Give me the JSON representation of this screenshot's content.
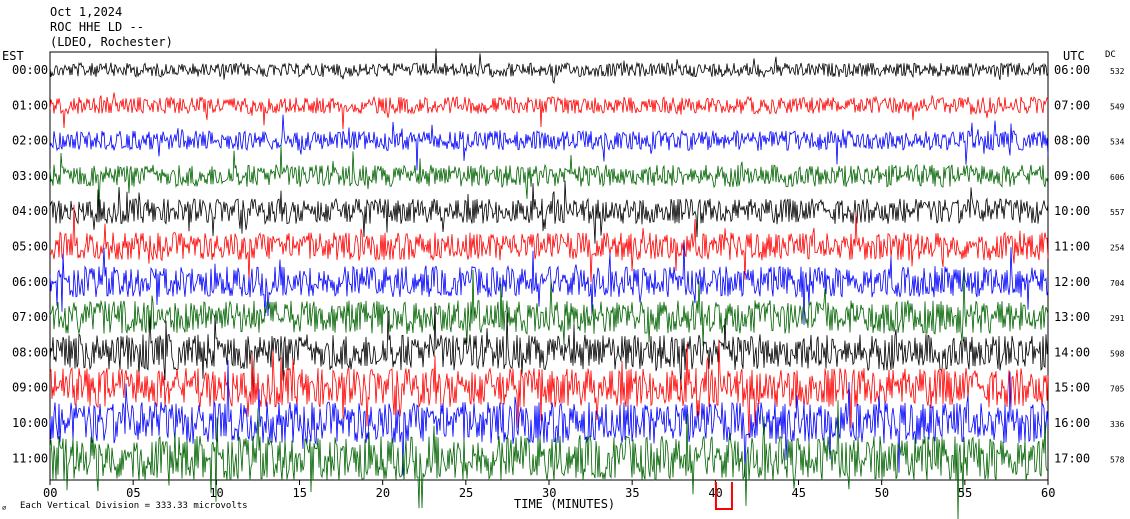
{
  "header": {
    "date": "Oct 1,2024",
    "station": "ROC HHE LD --",
    "network": "(LDEO, Rochester)"
  },
  "left_axis_title": "EST",
  "right_axis_title": "UTC",
  "dc_title": "DC",
  "footer": {
    "scale_note": "Each Vertical Division = 333.33 microvolts",
    "xlabel": "TIME (MINUTES)"
  },
  "colors": {
    "black": "#000000",
    "red": "#ff0000",
    "blue": "#0000ff",
    "green": "#006400",
    "marker": "#ff0000"
  },
  "chart_data": {
    "type": "line",
    "title": "Oct 1,2024",
    "xlabel": "TIME (MINUTES)",
    "ylabel": "",
    "xlim": [
      0,
      60
    ],
    "x_ticks": [
      "00",
      "05",
      "10",
      "15",
      "20",
      "25",
      "30",
      "35",
      "40",
      "45",
      "50",
      "55",
      "60"
    ],
    "rows": [
      {
        "est": "00:00",
        "utc": "06:00",
        "dc": "532",
        "color": "black"
      },
      {
        "est": "01:00",
        "utc": "07:00",
        "dc": "549",
        "color": "red"
      },
      {
        "est": "02:00",
        "utc": "08:00",
        "dc": "534",
        "color": "blue"
      },
      {
        "est": "03:00",
        "utc": "09:00",
        "dc": "606",
        "color": "green"
      },
      {
        "est": "04:00",
        "utc": "10:00",
        "dc": "557",
        "color": "black"
      },
      {
        "est": "05:00",
        "utc": "11:00",
        "dc": "254",
        "color": "red"
      },
      {
        "est": "06:00",
        "utc": "12:00",
        "dc": "704",
        "color": "blue"
      },
      {
        "est": "07:00",
        "utc": "13:00",
        "dc": "291",
        "color": "green"
      },
      {
        "est": "08:00",
        "utc": "14:00",
        "dc": "598",
        "color": "black"
      },
      {
        "est": "09:00",
        "utc": "15:00",
        "dc": "705",
        "color": "red"
      },
      {
        "est": "10:00",
        "utc": "16:00",
        "dc": "336",
        "color": "blue"
      },
      {
        "est": "11:00",
        "utc": "17:00",
        "dc": "578",
        "color": "green"
      }
    ],
    "current_time_marker_minute": 41,
    "grid": false,
    "legend": "none"
  }
}
